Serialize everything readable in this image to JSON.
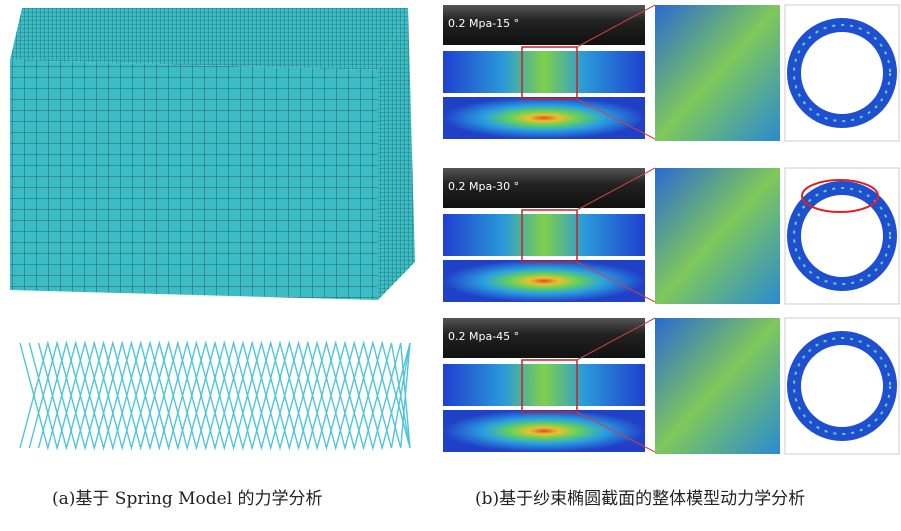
{
  "panels": {
    "a": {
      "caption": "(a)基于 Spring Model 的力学分析"
    },
    "b": {
      "caption": "(b)基于纱束椭圆截面的整体模型动力学分析",
      "rows": [
        {
          "label": "0.2 Mpa-15 °"
        },
        {
          "label": "0.2 Mpa-30 °"
        },
        {
          "label": "0.2 Mpa-45 °"
        }
      ]
    }
  }
}
